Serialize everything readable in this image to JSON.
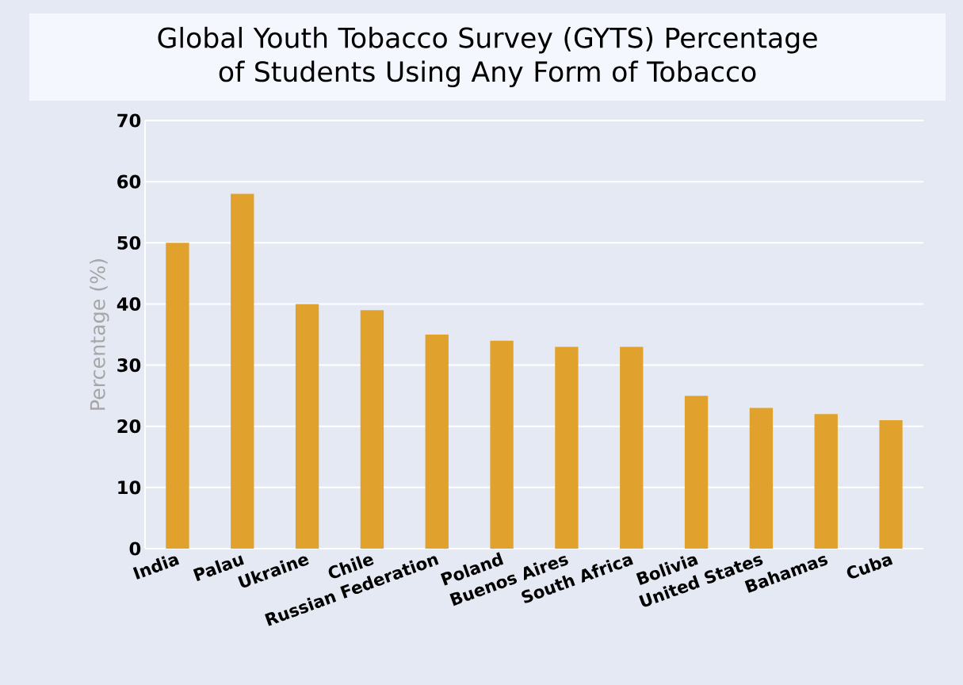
{
  "chart_data": {
    "type": "bar",
    "title": "Global Youth Tobacco Survey (GYTS) Percentage of Students Using Any Form of Tobacco",
    "ylabel": "Percentage (%)",
    "categories": [
      "India",
      "Palau",
      "Ukraine",
      "Chile",
      "Russian Federation",
      "Poland",
      "Buenos Aires",
      "South Africa",
      "Bolivia",
      "United States",
      "Bahamas",
      "Cuba"
    ],
    "values": [
      50,
      58,
      40,
      39,
      35,
      34,
      33,
      33,
      25,
      23,
      22,
      21
    ],
    "color": "#e0a22c",
    "ylim": [
      0,
      70
    ],
    "yticks": [
      0,
      10,
      20,
      30,
      40,
      50,
      60,
      70
    ],
    "grid": "y"
  }
}
